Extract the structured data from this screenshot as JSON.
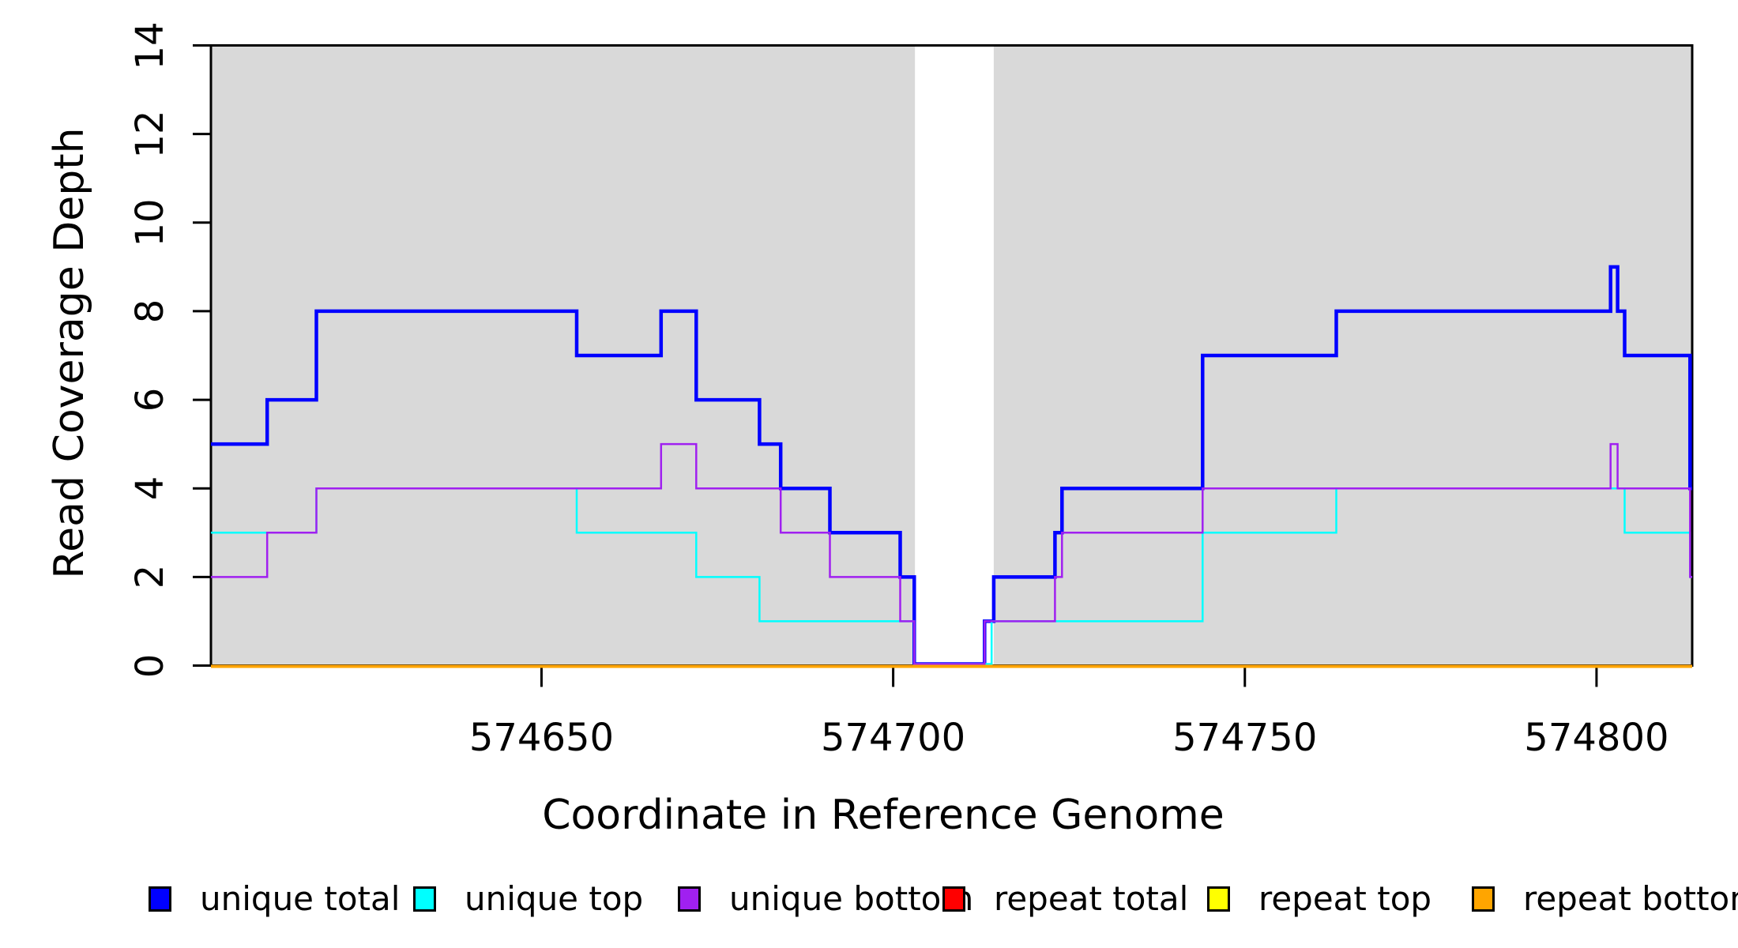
{
  "chart_data": {
    "type": "line",
    "subtype": "step",
    "title": "",
    "xlabel": "Coordinate in Reference Genome",
    "ylabel": "Read Coverage Depth",
    "xlim": [
      574603,
      574813.6
    ],
    "ylim": [
      0,
      14
    ],
    "x_ticks": [
      "574650",
      "574700",
      "574750",
      "574800"
    ],
    "x_tick_values": [
      574650,
      574700,
      574750,
      574800
    ],
    "y_ticks": [
      "0",
      "2",
      "4",
      "6",
      "8",
      "10",
      "12",
      "14"
    ],
    "y_tick_values": [
      0,
      2,
      4,
      6,
      8,
      10,
      12,
      14
    ],
    "grid": false,
    "legend_position": "bottom",
    "background_color": "#ffffff",
    "shaded_region_color": "#D9D9D9",
    "shaded_regions": [
      [
        574603,
        574703.1
      ],
      [
        574714.3,
        574813.6
      ]
    ],
    "series": [
      {
        "name": "unique total",
        "color": "#0000FF",
        "line_width": 4.5,
        "steps": [
          [
            574603,
            5
          ],
          [
            574611,
            6
          ],
          [
            574618,
            8
          ],
          [
            574655,
            7
          ],
          [
            574667,
            8
          ],
          [
            574672,
            6
          ],
          [
            574681,
            5
          ],
          [
            574684,
            4
          ],
          [
            574691,
            3
          ],
          [
            574701,
            2
          ],
          [
            574703,
            0
          ],
          [
            574713,
            1
          ],
          [
            574714.3,
            2
          ],
          [
            574723,
            3
          ],
          [
            574724,
            4
          ],
          [
            574744,
            7
          ],
          [
            574763,
            8
          ],
          [
            574802,
            9
          ],
          [
            574803,
            8
          ],
          [
            574804,
            7
          ],
          [
            574813.3,
            4
          ]
        ],
        "end": 574813.6
      },
      {
        "name": "unique top",
        "color": "#00FFFF",
        "line_width": 2.5,
        "steps": [
          [
            574603,
            3
          ],
          [
            574618,
            4
          ],
          [
            574655,
            3
          ],
          [
            574672,
            2
          ],
          [
            574681,
            1
          ],
          [
            574703,
            0
          ],
          [
            574714,
            1
          ],
          [
            574744,
            3
          ],
          [
            574763,
            4
          ],
          [
            574804,
            3
          ],
          [
            574813.3,
            2
          ]
        ],
        "end": 574813.6
      },
      {
        "name": "unique bottom",
        "color": "#A020F0",
        "line_width": 2.5,
        "steps": [
          [
            574603,
            2
          ],
          [
            574611,
            3
          ],
          [
            574618,
            4
          ],
          [
            574667,
            5
          ],
          [
            574672,
            4
          ],
          [
            574684,
            3
          ],
          [
            574691,
            2
          ],
          [
            574701,
            1
          ],
          [
            574703,
            0
          ],
          [
            574713,
            1
          ],
          [
            574723,
            2
          ],
          [
            574724,
            3
          ],
          [
            574744,
            4
          ],
          [
            574802,
            5
          ],
          [
            574803,
            4
          ],
          [
            574813.3,
            2
          ]
        ],
        "end": 574813.6
      },
      {
        "name": "repeat total",
        "color": "#FF0000",
        "line_width": 2.5,
        "steps": [
          [
            574603,
            0
          ]
        ],
        "end": 574813.6
      },
      {
        "name": "repeat top",
        "color": "#FFFF00",
        "line_width": 2.5,
        "steps": [
          [
            574603,
            0
          ]
        ],
        "end": 574813.6
      },
      {
        "name": "repeat bottom",
        "color": "#FFA500",
        "line_width": 4,
        "steps": [
          [
            574603,
            0
          ]
        ],
        "end": 574813.6
      }
    ]
  },
  "legend": {
    "items": [
      {
        "label": "unique total",
        "color": "#0000FF"
      },
      {
        "label": "unique top",
        "color": "#00FFFF"
      },
      {
        "label": "unique bottom",
        "color": "#A020F0"
      },
      {
        "label": "repeat total",
        "color": "#FF0000"
      },
      {
        "label": "repeat top",
        "color": "#FFFF00"
      },
      {
        "label": "repeat bottom",
        "color": "#FFA500"
      }
    ]
  }
}
